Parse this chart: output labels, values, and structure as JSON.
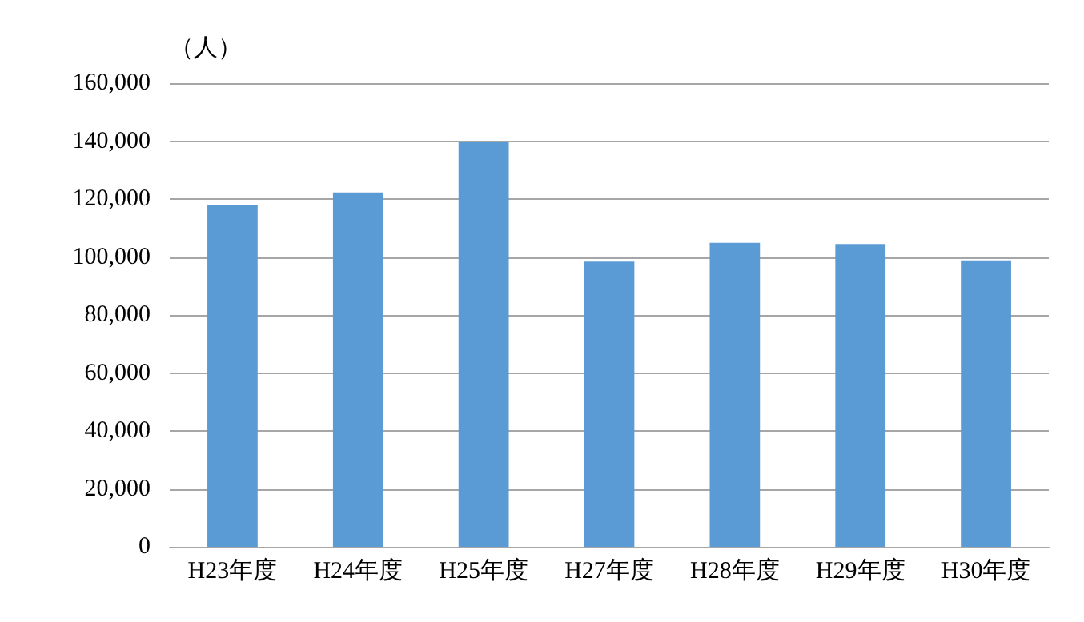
{
  "chart_data": {
    "type": "bar",
    "ylabel": "（人）",
    "categories": [
      "H23年度",
      "H24年度",
      "H25年度",
      "H27年度",
      "H28年度",
      "H29年度",
      "H30年度"
    ],
    "values": [
      117800,
      122300,
      139800,
      98400,
      104900,
      104500,
      98800
    ],
    "color": "#5b9bd5",
    "ylim": [
      0,
      160000
    ],
    "yticks": [
      0,
      {
        "value": 20000,
        "label": "20,000"
      },
      {
        "value": 40000,
        "label": "40,000"
      },
      {
        "value": 60000,
        "label": "60,000"
      },
      {
        "value": 80000,
        "label": "80,000"
      },
      {
        "value": 100000,
        "label": "100,000"
      },
      {
        "value": 120000,
        "label": "120,000"
      },
      {
        "value": 140000,
        "label": "140,000"
      },
      {
        "value": 160000,
        "label": "160,000"
      }
    ],
    "grid": "y"
  }
}
